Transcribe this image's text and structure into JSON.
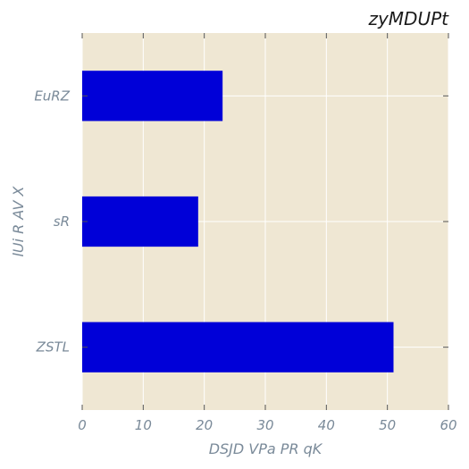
{
  "chart_data": {
    "type": "bar",
    "orientation": "horizontal",
    "title": "zyMDUPt",
    "xlabel": "DSJD VPa PR qK",
    "ylabel": "lUi R AV X",
    "categories": [
      "EuRZ",
      "sR",
      "ZSTL"
    ],
    "values": [
      23,
      19,
      51
    ],
    "xlim": [
      0,
      60
    ],
    "xticks": [
      0,
      10,
      20,
      30,
      40,
      50,
      60
    ],
    "grid": true,
    "colors": {
      "bar": "#0000d8",
      "background": "#efe7d3",
      "grid": "#ffffff"
    }
  }
}
